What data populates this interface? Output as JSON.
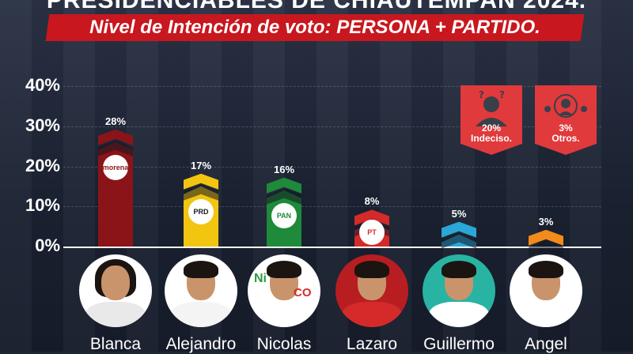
{
  "header": {
    "title": "PRESIDENCIABLES DE CHIAUTEMPAN 2024.",
    "subtitle": "Nivel de Intención de voto: PERSONA + PARTIDO."
  },
  "chart_data": {
    "type": "bar",
    "categories": [
      "Blanca",
      "Alejandro",
      "Nicolas",
      "Lazaro",
      "Guillermo",
      "Angel"
    ],
    "values": [
      28,
      17,
      16,
      8,
      5,
      3
    ],
    "value_labels": [
      "28%",
      "17%",
      "16%",
      "8%",
      "5%",
      "3%"
    ],
    "ylim": [
      0,
      40
    ],
    "yticks": [
      "0%",
      "10%",
      "20%",
      "30%",
      "40%"
    ],
    "grid": true,
    "colors": [
      "#8b1419",
      "#f2c511",
      "#1e8a3a",
      "#d42a2a",
      "#2aa7d6",
      "#f28a1c"
    ],
    "party_logos": [
      "morena",
      "PRD",
      "PAN",
      "PT",
      "",
      ""
    ]
  },
  "badges": {
    "undecided": {
      "value": "20%",
      "label": "Indeciso."
    },
    "others": {
      "value": "3%",
      "label": "Otros."
    }
  },
  "logo_text": {
    "nico": "Ni",
    "co": "CO"
  }
}
